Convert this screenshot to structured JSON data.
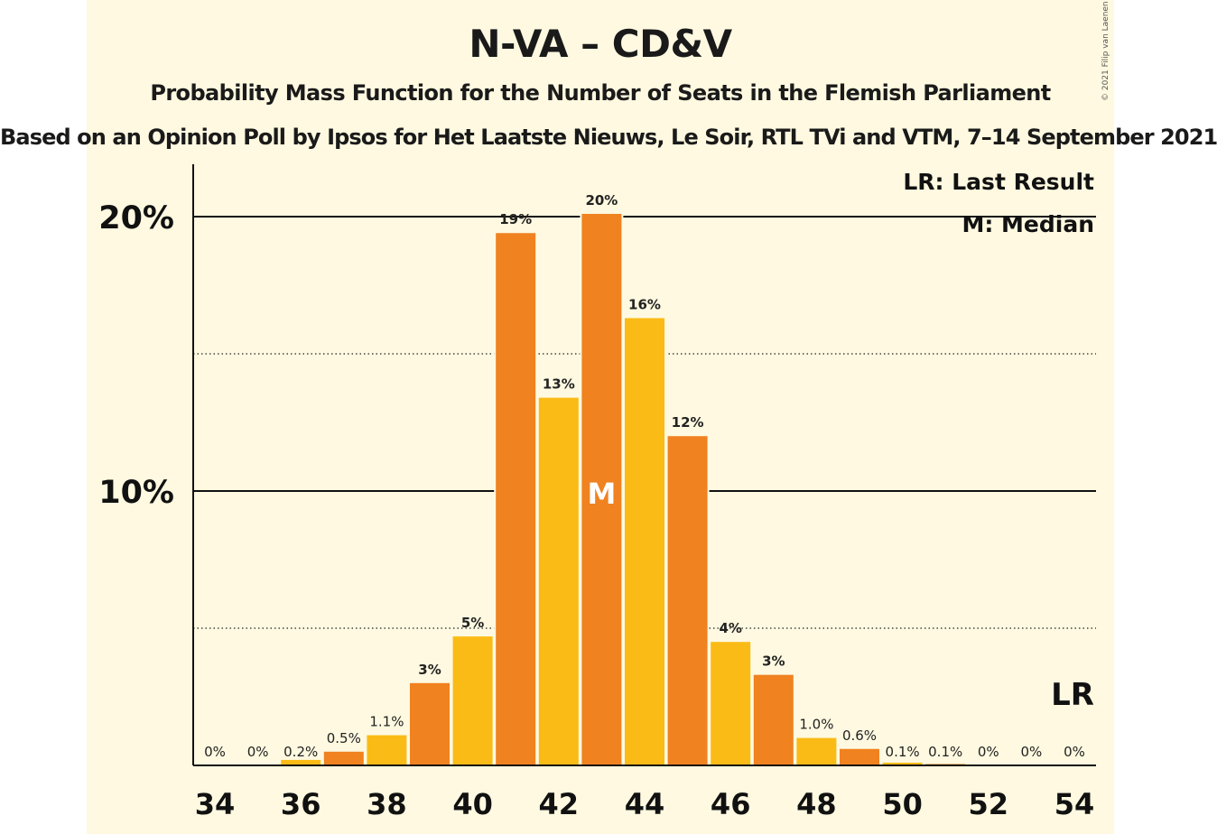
{
  "title": "N-VA – CD&V",
  "subtitle": "Probability Mass Function for the Number of Seats in the Flemish Parliament",
  "subtitle2": "Based on an Opinion Poll by Ipsos for Het Laatste Nieuws, Le Soir, RTL TVi and VTM, 7–14 September 2021",
  "credit": "© 2021 Filip van Laenen",
  "colors": {
    "orange": "#F08220",
    "yellow": "#FBBB16",
    "background": "#FEF9E0"
  },
  "chart_data": {
    "type": "bar",
    "categories": [
      34,
      35,
      36,
      37,
      38,
      39,
      40,
      41,
      42,
      43,
      44,
      45,
      46,
      47,
      48,
      49,
      50,
      51,
      52,
      53,
      54
    ],
    "values": [
      0,
      0,
      0.2,
      0.5,
      1.1,
      3.0,
      4.7,
      19.4,
      13.4,
      20.1,
      16.3,
      12.0,
      4.5,
      3.3,
      1.0,
      0.6,
      0.1,
      0.05,
      0,
      0,
      0
    ],
    "data_labels": [
      "0%",
      "0%",
      "0.2%",
      "0.5%",
      "1.1%",
      "3%",
      "5%",
      "19%",
      "13%",
      "20%",
      "16%",
      "12%",
      "4%",
      "3%",
      "1.0%",
      "0.6%",
      "0.1%",
      "0.1%",
      "0%",
      "0%",
      "0%"
    ],
    "x_tick_labels": [
      "34",
      "36",
      "38",
      "40",
      "42",
      "44",
      "46",
      "48",
      "50",
      "52",
      "54"
    ],
    "y_tick_labels": [
      "10%",
      "20%"
    ],
    "ylim": [
      0,
      22
    ],
    "gridlines": {
      "solid": [
        10,
        20
      ],
      "dotted": [
        5,
        15
      ]
    },
    "median": 43,
    "median_marker": "M",
    "last_result_marker": "LR",
    "legend": [
      "LR: Last Result",
      "M: Median"
    ],
    "legend_position": "top-right"
  }
}
